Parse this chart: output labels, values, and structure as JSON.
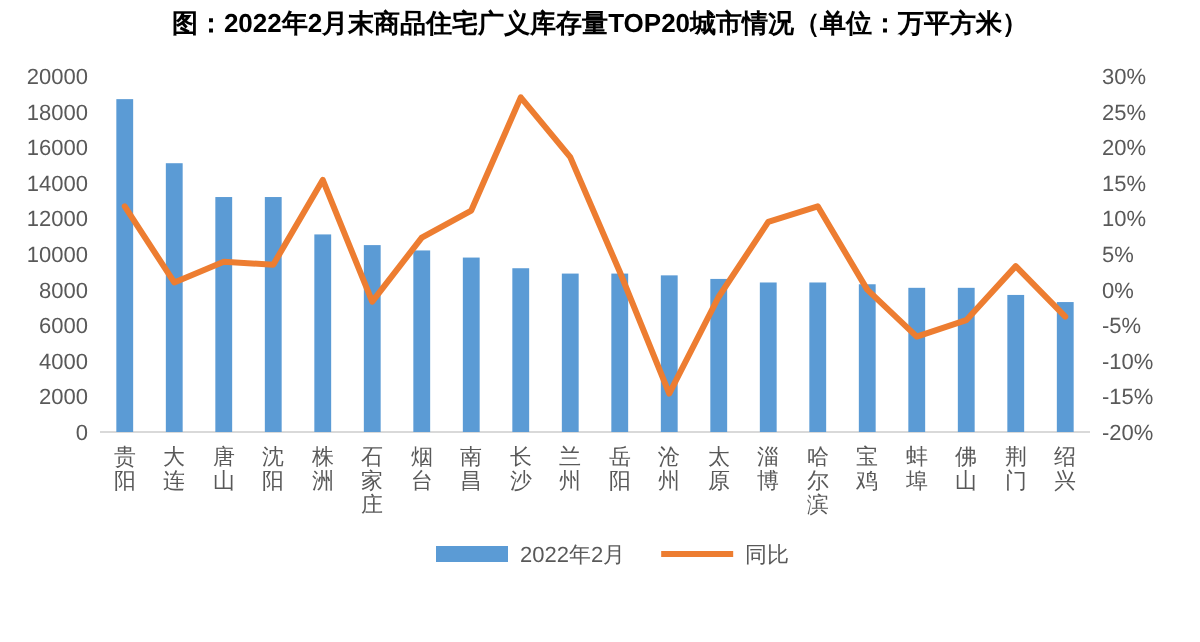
{
  "chart_data": {
    "type": "bar",
    "title": "图：2022年2月末商品住宅广义库存量TOP20城市情况（单位：万平方米）",
    "categories": [
      "贵阳",
      "大连",
      "唐山",
      "沈阳",
      "株洲",
      "石家庄",
      "烟台",
      "南昌",
      "长沙",
      "兰州",
      "岳阳",
      "沧州",
      "太原",
      "淄博",
      "哈尔滨",
      "宝鸡",
      "蚌埠",
      "佛山",
      "荆门",
      "绍兴"
    ],
    "series": [
      {
        "name": "2022年2月",
        "color": "#5b9bd5",
        "values": [
          18700,
          15100,
          13200,
          13200,
          11100,
          10500,
          10200,
          9800,
          9200,
          8900,
          8900,
          8800,
          8600,
          8400,
          8400,
          8300,
          8100,
          8100,
          7700,
          7300
        ]
      },
      {
        "name": "同比",
        "type": "line",
        "axis": "y2",
        "color": "#ed7d31",
        "values": [
          11.7,
          1.0,
          3.9,
          3.5,
          15.4,
          -1.7,
          7.3,
          11.1,
          27.0,
          18.6,
          2.5,
          -14.6,
          -1.0,
          9.5,
          11.7,
          0.0,
          -6.6,
          -4.3,
          3.3,
          -3.8
        ]
      }
    ],
    "ylim": [
      0,
      20000
    ],
    "yticks": [
      0,
      2000,
      4000,
      6000,
      8000,
      10000,
      12000,
      14000,
      16000,
      18000,
      20000
    ],
    "y2lim": [
      -20,
      30
    ],
    "y2ticks": [
      {
        "value": -20,
        "label": "-20%"
      },
      {
        "value": -15,
        "label": "-15%"
      },
      {
        "value": -10,
        "label": "-10%"
      },
      {
        "value": -5,
        "label": "-5%"
      },
      {
        "value": 0,
        "label": "0%"
      },
      {
        "value": 5,
        "label": "5%"
      },
      {
        "value": 10,
        "label": "10%"
      },
      {
        "value": 15,
        "label": "15%"
      },
      {
        "value": 20,
        "label": "20%"
      },
      {
        "value": 25,
        "label": "25%"
      },
      {
        "value": 30,
        "label": "30%"
      }
    ],
    "legend": "bottom",
    "marker": "none"
  }
}
